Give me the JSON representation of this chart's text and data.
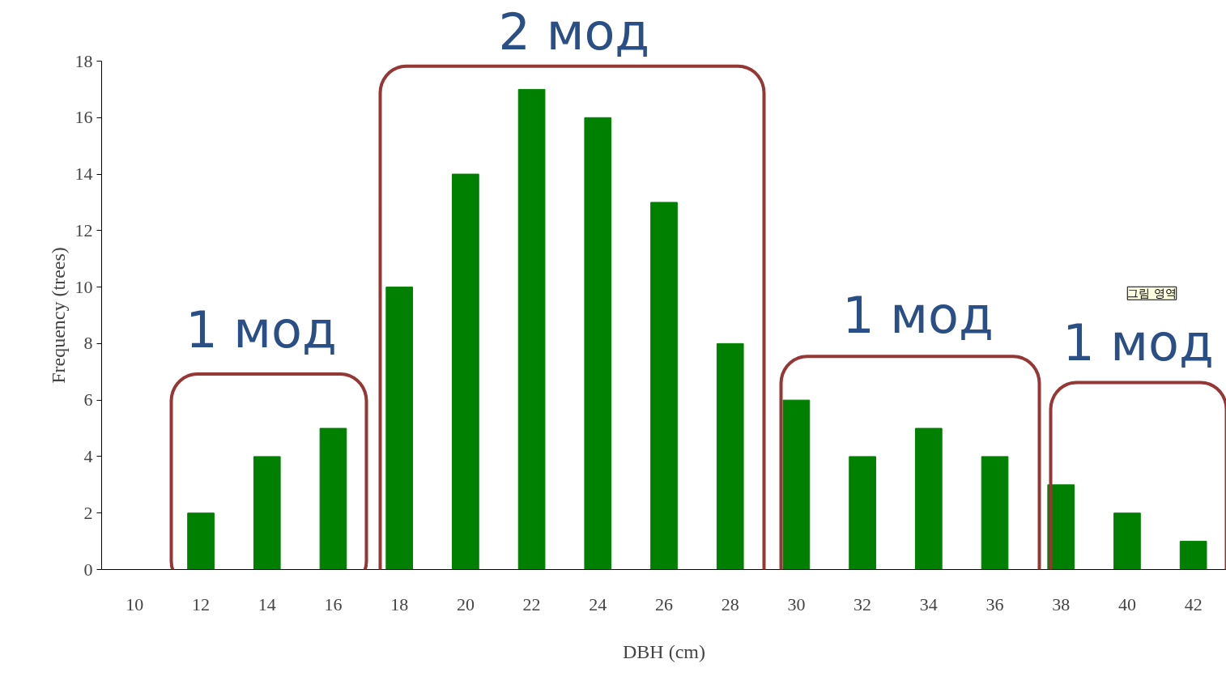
{
  "chart_data": {
    "type": "bar",
    "categories": [
      "10",
      "12",
      "14",
      "16",
      "18",
      "20",
      "22",
      "24",
      "26",
      "28",
      "30",
      "32",
      "34",
      "36",
      "38",
      "40",
      "42"
    ],
    "values": [
      0,
      2,
      4,
      5,
      10,
      14,
      17,
      16,
      13,
      8,
      6,
      4,
      5,
      4,
      3,
      2,
      1
    ],
    "color": "#008000",
    "xlabel": "DBH (cm)",
    "ylabel": "Frequency (trees)",
    "ylim": [
      0,
      18
    ],
    "yticks": [
      0,
      2,
      4,
      6,
      8,
      10,
      12,
      14,
      16,
      18
    ],
    "grid": false,
    "annotations": [
      "2 мод",
      "1 мод",
      "1 мод",
      "1 мод",
      "그림 영역"
    ]
  }
}
